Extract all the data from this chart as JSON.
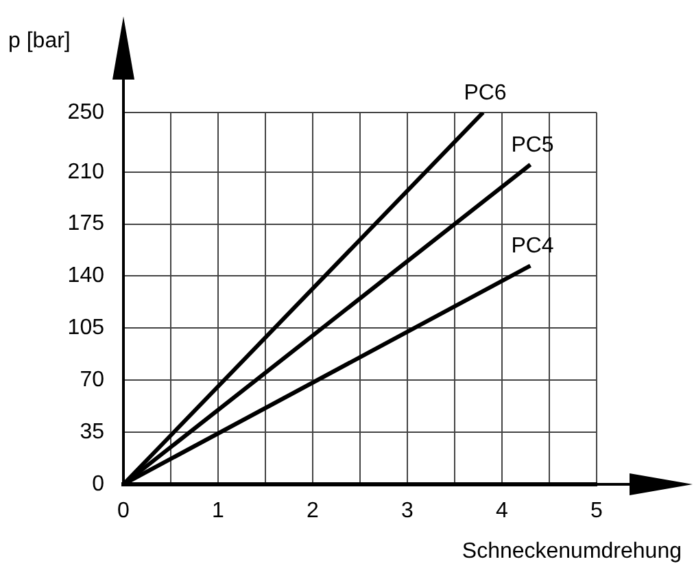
{
  "chart_data": {
    "type": "line",
    "xlabel": "Schneckenumdrehung",
    "ylabel": "p [bar]",
    "xlim": [
      0,
      5
    ],
    "xticks": [
      0,
      {
        "value": 0.5,
        "label": null
      },
      1,
      {
        "value": 1.5,
        "label": null
      },
      2,
      {
        "value": 2.5,
        "label": null
      },
      3,
      {
        "value": 3.5,
        "label": null
      },
      4,
      {
        "value": 4.5,
        "label": null
      },
      5
    ],
    "ylim": [
      0,
      250
    ],
    "yticks": [
      0,
      35,
      70,
      105,
      140,
      175,
      210,
      250
    ],
    "grid": true,
    "legend": false,
    "marker": "none",
    "line_style": "solid",
    "series": [
      {
        "name": "PC6",
        "color": "#000000",
        "x": [
          0,
          3.8
        ],
        "values": [
          0,
          250
        ]
      },
      {
        "name": "PC5",
        "color": "#000000",
        "x": [
          0,
          4.3
        ],
        "values": [
          0,
          215
        ]
      },
      {
        "name": "PC4",
        "color": "#000000",
        "x": [
          0,
          4.3
        ],
        "values": [
          0,
          147
        ]
      }
    ]
  }
}
